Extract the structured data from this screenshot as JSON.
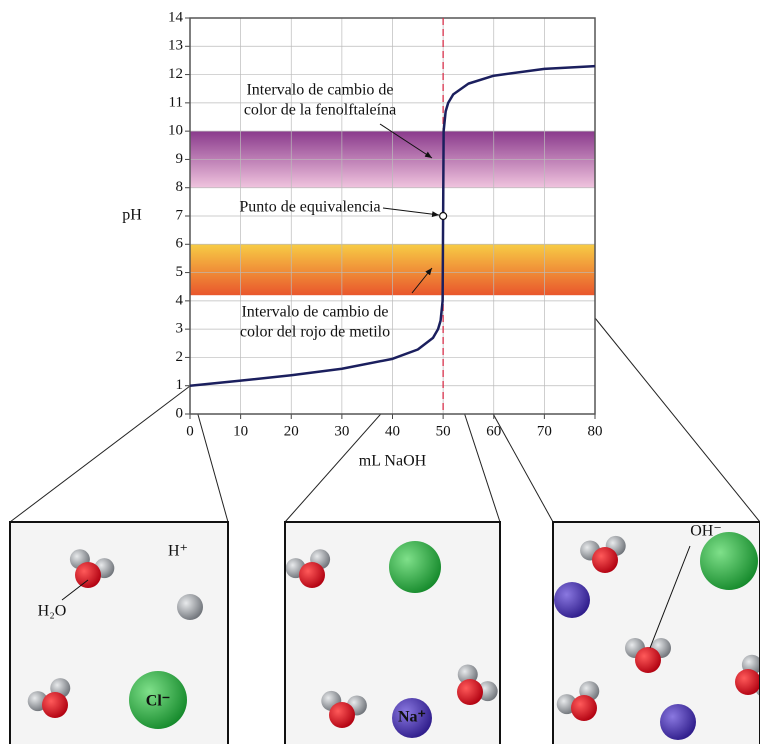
{
  "chart_data": {
    "type": "line",
    "xlabel": "mL NaOH",
    "ylabel": "pH",
    "x": [
      0,
      10,
      20,
      30,
      40,
      45,
      48,
      49,
      49.5,
      49.9,
      50,
      50.1,
      50.5,
      51,
      52,
      55,
      60,
      70,
      80
    ],
    "series": [
      {
        "color": "#1b1f5e",
        "values": [
          1.0,
          1.18,
          1.37,
          1.6,
          1.95,
          2.28,
          2.69,
          3.0,
          3.3,
          4.0,
          7.0,
          10.0,
          10.7,
          11.0,
          11.3,
          11.68,
          11.96,
          12.2,
          12.3
        ]
      }
    ],
    "xlim": [
      0,
      80
    ],
    "ylim": [
      0,
      14
    ],
    "xticks": [
      0,
      10,
      20,
      30,
      40,
      50,
      60,
      70,
      80
    ],
    "yticks": [
      0,
      1,
      2,
      3,
      4,
      5,
      6,
      7,
      8,
      9,
      10,
      11,
      12,
      13,
      14
    ],
    "grid": true,
    "reference_line": {
      "x": 50,
      "color": "#d8304a"
    },
    "equivalence_point": {
      "x": 50,
      "y": 7
    },
    "bands": [
      {
        "ymin": 8,
        "ymax": 10,
        "colors": [
          "#8a3a8c",
          "#f0c4de"
        ]
      },
      {
        "ymin": 4.2,
        "ymax": 6,
        "colors": [
          "#f7cc45",
          "#e9562c"
        ]
      }
    ],
    "annotations": [
      {
        "lines": [
          "Intervalo de cambio de",
          "color de la fenolftaleína"
        ]
      },
      {
        "lines": [
          "Punto de equivalencia"
        ]
      },
      {
        "lines": [
          "Intervalo de cambio de",
          "color del rojo de metilo"
        ]
      }
    ]
  },
  "illustrations": [
    {
      "labels": [
        "H₂O",
        "H⁺",
        "Cl⁻"
      ]
    },
    {
      "labels": [
        "Na⁺"
      ]
    },
    {
      "labels": [
        "OH⁻"
      ]
    }
  ]
}
